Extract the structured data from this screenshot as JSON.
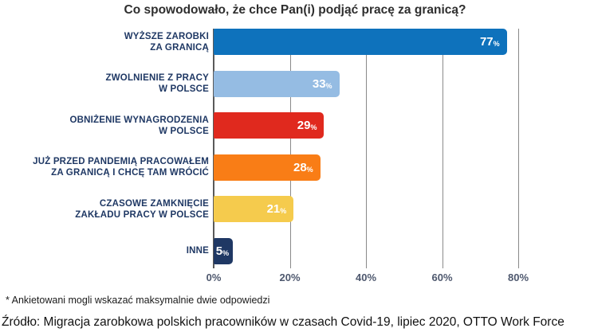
{
  "title": "Co spowodowało, że chce Pan(i) podjąć pracę za granicą?",
  "chart_data": {
    "type": "bar",
    "orientation": "horizontal",
    "title": "Co spowodowało, że chce Pan(i) podjąć pracę za granicą?",
    "unit": "%",
    "categories": [
      [
        "WYŻSZE ZAROBKI",
        "ZA GRANICĄ"
      ],
      [
        "ZWOLNIENIE Z PRACY",
        "W POLSCE"
      ],
      [
        "OBNIŻENIE WYNAGRODZENIA",
        "W POLSCE"
      ],
      [
        "JUŻ PRZED PANDEMIĄ PRACOWAŁEM",
        "ZA GRANICĄ I CHCĘ TAM WRÓCIĆ"
      ],
      [
        "CZASOWE ZAMKNIĘCIE",
        "ZAKŁADU PRACY W POLSCE"
      ],
      [
        "INNE"
      ]
    ],
    "values": [
      77,
      33,
      29,
      28,
      21,
      5
    ],
    "colors": [
      "#0E72BC",
      "#95BCE3",
      "#E0291E",
      "#F97D16",
      "#F5CB4D",
      "#1F3864"
    ],
    "xtick_values": [
      0,
      20,
      40,
      60,
      80
    ],
    "xtick_labels": [
      "0%",
      "20%",
      "40%",
      "60%",
      "80%"
    ],
    "xlim": [
      0,
      92
    ],
    "grid": true,
    "value_label_color": "#FFFFFF",
    "category_label_color": "#1F3864"
  },
  "footnote": "* Ankietowani mogli wskazać maksymalnie dwie odpowiedzi",
  "source": "Źródło: Migracja zarobkowa polskich pracowników w czasach Covid-19, lipiec 2020, OTTO Work Force"
}
